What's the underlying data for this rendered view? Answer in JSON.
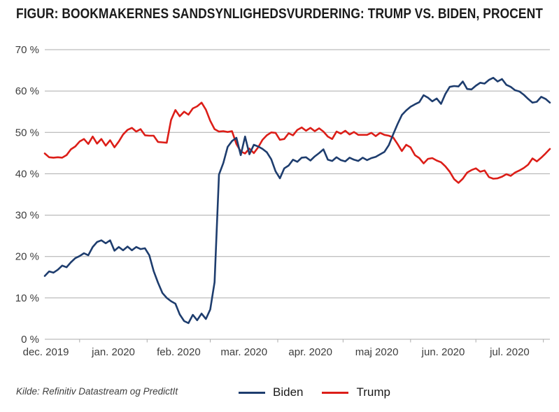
{
  "title": "FIGUR: BOOKMAKERNES SANDSYNLIGHEDSVURDERING: TRUMP VS. BIDEN, PROCENT",
  "source": "Kilde: Refinitiv Datastream og PredictIt",
  "legend": [
    {
      "label": "Biden",
      "color": "#1e3d6e"
    },
    {
      "label": "Trump",
      "color": "#dc1e18"
    }
  ],
  "colors": {
    "grid": "#ababab",
    "axis_text": "#3d3d3d",
    "title_text": "#1a1a1a",
    "biden_line": "#1e3d6e",
    "trump_line": "#dc1e18"
  },
  "y_axis": {
    "tick_labels": [
      "70 %",
      "60 %",
      "50 %",
      "40 %",
      "30 %",
      "20 %",
      "10 %",
      "0 %"
    ],
    "tick_values": [
      70,
      60,
      50,
      40,
      30,
      20,
      10,
      0
    ]
  },
  "x_axis": {
    "tick_labels": [
      "dec. 2019",
      "jan. 2020",
      "feb. 2020",
      "mar. 2020",
      "apr. 2020",
      "maj 2020",
      "jun. 2020",
      "jul. 2020"
    ]
  },
  "chart_data": {
    "type": "line",
    "title": "Bookmakernes sandsynlighedsvurdering: Trump vs. Biden, procent",
    "xlabel": "",
    "ylabel": "",
    "y_unit": "%",
    "ylim": [
      0,
      70
    ],
    "grid": "horizontal",
    "legend_position": "bottom",
    "x_start_date": "2019-12-16",
    "x_end_date": "2020-08-04",
    "x_step_days": 2,
    "series": [
      {
        "name": "Biden",
        "color": "#1e3d6e",
        "values": [
          15.3,
          16.4,
          16.1,
          16.8,
          17.8,
          17.4,
          18.6,
          19.6,
          20.1,
          20.8,
          20.3,
          22.3,
          23.5,
          23.9,
          23.2,
          23.9,
          21.4,
          22.3,
          21.5,
          22.4,
          21.5,
          22.3,
          21.8,
          22.0,
          20.3,
          16.5,
          13.7,
          11.2,
          10.0,
          9.2,
          8.6,
          6.0,
          4.4,
          3.9,
          5.9,
          4.6,
          6.2,
          4.9,
          7.2,
          13.8,
          39.8,
          42.6,
          46.5,
          47.9,
          48.7,
          44.5,
          49.0,
          44.7,
          47.0,
          46.6,
          46.0,
          45.2,
          43.5,
          40.6,
          38.9,
          41.3,
          42.0,
          43.4,
          42.9,
          43.9,
          44.0,
          43.2,
          44.2,
          45.0,
          45.9,
          43.4,
          43.1,
          44.0,
          43.3,
          43.0,
          43.9,
          43.4,
          43.1,
          43.9,
          43.3,
          43.8,
          44.1,
          44.7,
          45.3,
          46.9,
          49.5,
          52.0,
          54.2,
          55.3,
          56.2,
          56.8,
          57.3,
          59.0,
          58.4,
          57.5,
          58.2,
          56.9,
          59.3,
          61.0,
          61.2,
          61.1,
          62.3,
          60.5,
          60.4,
          61.3,
          62.0,
          61.8,
          62.7,
          63.2,
          62.3,
          62.9,
          61.5,
          61.0,
          60.2,
          59.9,
          59.1,
          58.1,
          57.2,
          57.4,
          58.6,
          58.1,
          57.2
        ]
      },
      {
        "name": "Trump",
        "color": "#dc1e18",
        "values": [
          44.9,
          44.0,
          43.9,
          44.0,
          43.9,
          44.5,
          45.9,
          46.6,
          47.8,
          48.4,
          47.2,
          49.0,
          47.3,
          48.4,
          46.8,
          48.1,
          46.4,
          47.8,
          49.5,
          50.6,
          51.1,
          50.2,
          50.8,
          49.3,
          49.2,
          49.2,
          47.7,
          47.6,
          47.5,
          53.0,
          55.4,
          53.9,
          55.0,
          54.3,
          55.8,
          56.3,
          57.2,
          55.5,
          52.8,
          50.8,
          50.2,
          50.3,
          50.1,
          50.3,
          47.2,
          45.4,
          44.9,
          46.1,
          45.0,
          46.4,
          48.2,
          49.3,
          50.0,
          49.9,
          48.2,
          48.4,
          49.8,
          49.3,
          50.6,
          51.2,
          50.4,
          51.1,
          50.3,
          51.0,
          50.2,
          49.0,
          48.4,
          50.2,
          49.7,
          50.4,
          49.5,
          50.1,
          49.4,
          49.4,
          49.4,
          49.9,
          49.1,
          49.9,
          49.4,
          49.2,
          48.8,
          47.2,
          45.5,
          47.0,
          46.4,
          44.5,
          43.8,
          42.5,
          43.6,
          43.8,
          43.2,
          42.8,
          41.8,
          40.5,
          38.7,
          37.8,
          38.8,
          40.3,
          40.9,
          41.3,
          40.5,
          40.8,
          39.2,
          38.8,
          38.9,
          39.3,
          39.9,
          39.5,
          40.3,
          40.8,
          41.4,
          42.2,
          43.7,
          43.0,
          43.9,
          44.9,
          46.0
        ]
      }
    ]
  }
}
